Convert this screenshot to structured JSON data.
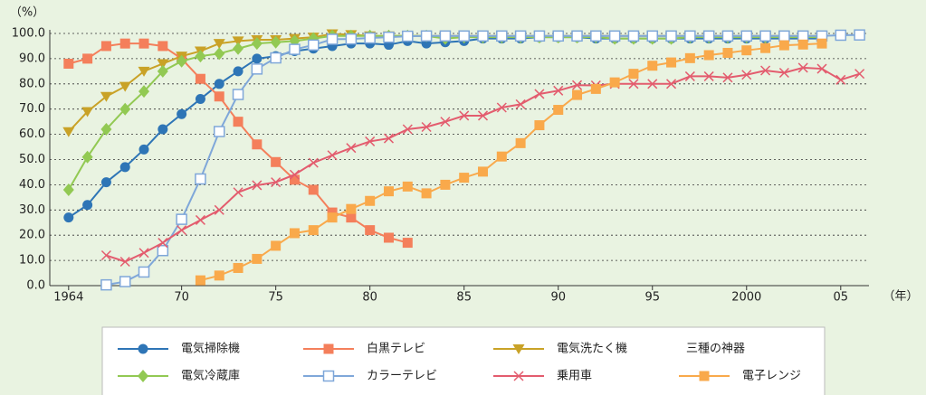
{
  "chart_data": {
    "type": "line",
    "y_axis_label": "（%）",
    "x_axis_label": "（年）",
    "legend_heading": "三種の神器",
    "xlim": [
      1963,
      2006.5
    ],
    "xticks": [
      1964,
      {
        "value": 1970,
        "label": "70"
      },
      {
        "value": 1975,
        "label": "75"
      },
      {
        "value": 1980,
        "label": "80"
      },
      {
        "value": 1985,
        "label": "85"
      },
      {
        "value": 1990,
        "label": "90"
      },
      {
        "value": 1995,
        "label": "95"
      },
      2000,
      {
        "value": 2005,
        "label": "05"
      }
    ],
    "ylim": [
      0,
      100
    ],
    "yticks": [
      {
        "value": 0,
        "label": "0.0"
      },
      {
        "value": 10,
        "label": "10.0"
      },
      {
        "value": 20,
        "label": "20.0"
      },
      {
        "value": 30,
        "label": "30.0"
      },
      {
        "value": 40,
        "label": "40.0"
      },
      {
        "value": 50,
        "label": "50.0"
      },
      {
        "value": 60,
        "label": "60.0"
      },
      {
        "value": 70,
        "label": "70.0"
      },
      {
        "value": 80,
        "label": "80.0"
      },
      {
        "value": 90,
        "label": "90.0"
      },
      {
        "value": 100,
        "label": "100.0"
      }
    ],
    "grid": true,
    "series": [
      {
        "name": "電気掃除機",
        "color": "#2e75b6",
        "marker": "circle",
        "x": [
          1964,
          1965,
          1966,
          1967,
          1968,
          1969,
          1970,
          1971,
          1972,
          1973,
          1974,
          1975,
          1976,
          1977,
          1978,
          1979,
          1980,
          1981,
          1982,
          1983,
          1984,
          1985,
          1986,
          1987,
          1988,
          1989,
          1990,
          1991,
          1992,
          1993,
          1994,
          1995,
          1996,
          1997,
          1998,
          1999,
          2000,
          2001,
          2002,
          2003,
          2004
        ],
        "values": [
          27,
          32,
          41,
          47,
          54,
          62,
          68,
          74,
          80,
          85,
          90,
          91,
          93,
          94,
          95,
          96,
          96,
          95.5,
          97,
          96,
          96.5,
          97,
          98,
          98,
          98,
          98.5,
          98.5,
          98.5,
          98,
          98,
          98,
          98,
          98,
          98,
          98,
          98,
          98,
          98,
          98,
          98,
          98
        ]
      },
      {
        "name": "白黒テレビ",
        "color": "#f47f5b",
        "marker": "square",
        "x": [
          1964,
          1965,
          1966,
          1967,
          1968,
          1969,
          1970,
          1971,
          1972,
          1973,
          1974,
          1975,
          1976,
          1977,
          1978,
          1979,
          1980,
          1981,
          1982
        ],
        "values": [
          88,
          90,
          95,
          96,
          96,
          95,
          90,
          82,
          75,
          65,
          56,
          49,
          42,
          38,
          29,
          27,
          22,
          19,
          17
        ]
      },
      {
        "name": "電気洗たく機",
        "color": "#c9a227",
        "marker": "triangle",
        "x": [
          1964,
          1965,
          1966,
          1967,
          1968,
          1969,
          1970,
          1971,
          1972,
          1973,
          1974,
          1975,
          1976,
          1977,
          1978,
          1979,
          1980,
          1981,
          1982,
          1983,
          1984,
          1985,
          1986,
          1987,
          1988,
          1989,
          1990,
          1991,
          1992,
          1993,
          1994,
          1995,
          1996,
          1997,
          1998,
          1999,
          2000,
          2001,
          2002,
          2003,
          2004
        ],
        "values": [
          61,
          69,
          75,
          79,
          85,
          88,
          91,
          93,
          96,
          97,
          97.5,
          97.5,
          98,
          98.5,
          99.8,
          99.5,
          99,
          99,
          99,
          99,
          99,
          99,
          99,
          99,
          99,
          99,
          99,
          99,
          99,
          99,
          99,
          99,
          99,
          99,
          99,
          99,
          99,
          99,
          99,
          99,
          99
        ]
      },
      {
        "name": "電気冷蔵庫",
        "color": "#92c953",
        "marker": "diamond",
        "x": [
          1964,
          1965,
          1966,
          1967,
          1968,
          1969,
          1970,
          1971,
          1972,
          1973,
          1974,
          1975,
          1976,
          1977,
          1978,
          1979,
          1980,
          1981,
          1982,
          1983,
          1984,
          1985,
          1986,
          1987,
          1988,
          1989,
          1990,
          1991,
          1992,
          1993,
          1994,
          1995,
          1996,
          1997,
          1998,
          1999,
          2000,
          2001,
          2002,
          2003,
          2004
        ],
        "values": [
          38,
          51,
          62,
          70,
          77,
          85,
          89,
          91,
          92,
          94,
          96,
          96.5,
          97,
          98,
          99,
          99,
          99,
          99,
          99,
          99,
          98,
          98.5,
          98.5,
          98.5,
          98.5,
          98.5,
          98.5,
          98.5,
          98.5,
          98,
          98,
          98,
          98,
          98.5,
          98.5,
          98.5,
          98.5,
          98.5,
          98.5,
          98.5,
          98.5
        ]
      },
      {
        "name": "カラーテレビ",
        "color": "#7fa7d9",
        "marker": "open-square",
        "x": [
          1966,
          1967,
          1968,
          1969,
          1970,
          1971,
          1972,
          1973,
          1974,
          1975,
          1976,
          1977,
          1978,
          1979,
          1980,
          1981,
          1982,
          1983,
          1984,
          1985,
          1986,
          1987,
          1988,
          1989,
          1990,
          1991,
          1992,
          1993,
          1994,
          1995,
          1996,
          1997,
          1998,
          1999,
          2000,
          2001,
          2002,
          2003,
          2004,
          2005,
          2006
        ],
        "values": [
          0.3,
          1.6,
          5.4,
          13.9,
          26.3,
          42.3,
          61.1,
          75.8,
          85.9,
          90.3,
          93.7,
          95.4,
          97.7,
          97.8,
          98.2,
          98.5,
          98.9,
          99,
          99,
          99,
          99,
          99,
          99,
          99,
          99,
          99,
          99,
          99,
          99,
          99,
          99,
          99,
          99,
          99,
          99,
          99,
          99,
          99,
          99,
          99.3,
          99.4
        ]
      },
      {
        "name": "乗用車",
        "color": "#e35c6e",
        "marker": "cross",
        "x": [
          1966,
          1967,
          1968,
          1969,
          1970,
          1971,
          1972,
          1973,
          1974,
          1975,
          1976,
          1977,
          1978,
          1979,
          1980,
          1981,
          1982,
          1983,
          1984,
          1985,
          1986,
          1987,
          1988,
          1989,
          1990,
          1991,
          1992,
          1993,
          1994,
          1995,
          1996,
          1997,
          1998,
          1999,
          2000,
          2001,
          2002,
          2003,
          2004,
          2005,
          2006
        ],
        "values": [
          12,
          9.5,
          13,
          17,
          22,
          26,
          30,
          37,
          39.8,
          41,
          44,
          48.7,
          51.7,
          54.6,
          57.2,
          58.4,
          62,
          62.9,
          65,
          67.4,
          67.4,
          70.6,
          71.9,
          76,
          77.3,
          79.5,
          79.4,
          80,
          80,
          80,
          80,
          83,
          83,
          82.5,
          83.6,
          85.3,
          84.4,
          86.4,
          86,
          81.6,
          84
        ]
      },
      {
        "name": "電子レンジ",
        "color": "#f9a94b",
        "marker": "square",
        "x": [
          1971,
          1972,
          1973,
          1974,
          1975,
          1976,
          1977,
          1978,
          1979,
          1980,
          1981,
          1982,
          1983,
          1984,
          1985,
          1986,
          1987,
          1988,
          1989,
          1990,
          1991,
          1992,
          1993,
          1994,
          1995,
          1996,
          1997,
          1998,
          1999,
          2000,
          2001,
          2002,
          2003,
          2004
        ],
        "values": [
          2.1,
          4,
          7,
          10.6,
          15.8,
          20.8,
          22,
          27,
          30.4,
          33.6,
          37.4,
          39.3,
          36.6,
          40,
          42.8,
          45.2,
          51.2,
          56.5,
          63.6,
          69.7,
          75.6,
          78,
          80.6,
          84,
          87.2,
          88.5,
          90.2,
          91.4,
          92.3,
          93.3,
          94.2,
          95.3,
          95.6,
          96
        ]
      }
    ]
  }
}
